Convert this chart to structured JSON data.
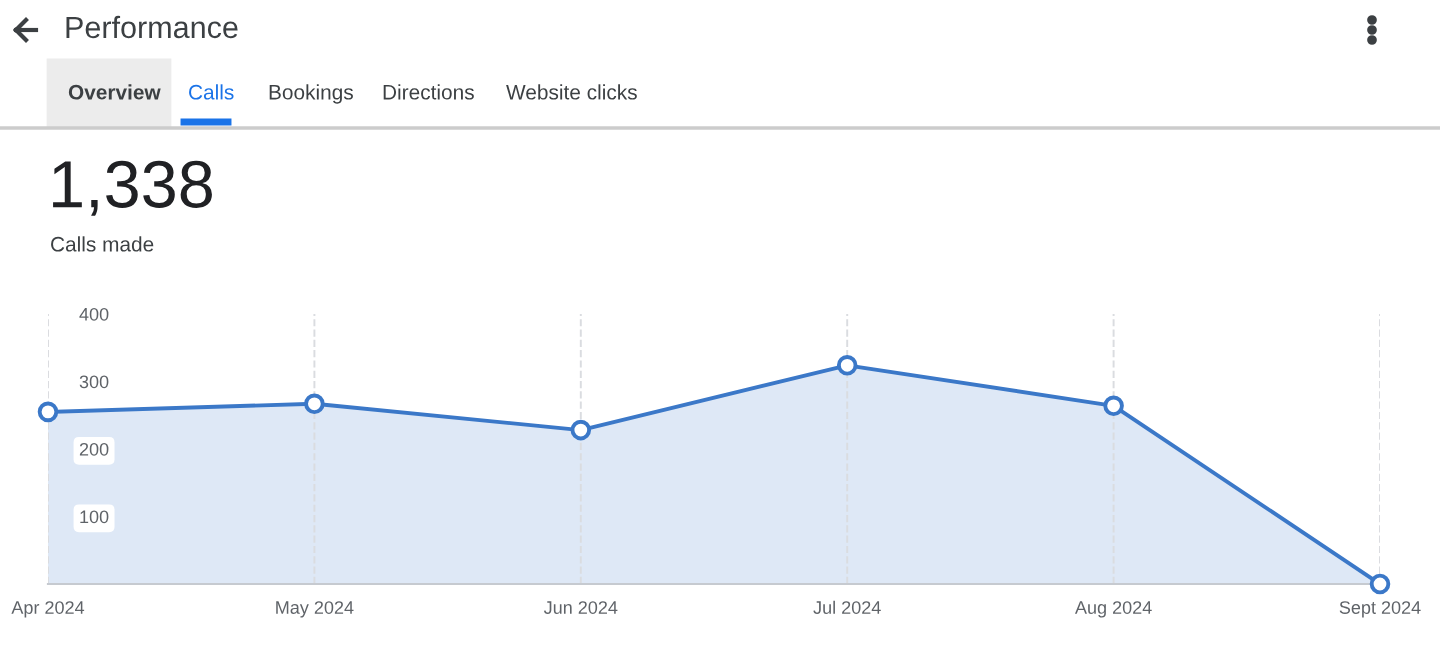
{
  "chart_data": {
    "type": "area",
    "title": "Performance",
    "subtitle": "1,338",
    "annotations": [
      "Overview",
      "Calls",
      "Bookings",
      "Directions",
      "Website clicks",
      "Calls made"
    ],
    "categories": [
      "Apr 2024",
      "May 2024",
      "Jun 2024",
      "Jul 2024",
      "Aug 2024",
      "Sept 2024"
    ],
    "series": [
      {
        "color": "#3b78c8",
        "values": [
          255,
          267,
          228,
          324,
          264,
          0
        ]
      }
    ],
    "ylim": [
      0,
      400
    ],
    "yticks": [
      100,
      200,
      300,
      400
    ],
    "grid": "x",
    "marker": "circle",
    "line_style": "solid",
    "legend": false
  }
}
